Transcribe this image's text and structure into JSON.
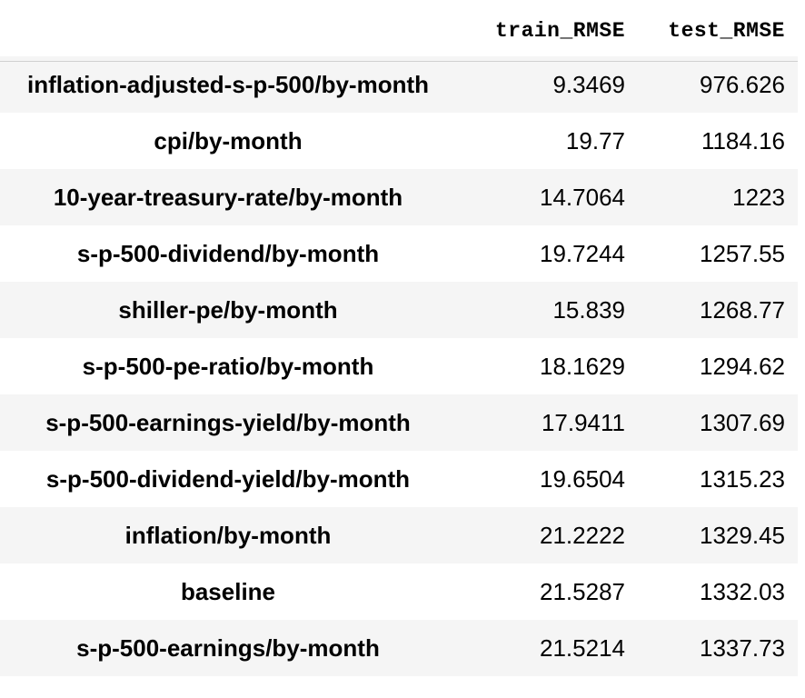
{
  "table": {
    "columns": [
      "train_RMSE",
      "test_RMSE"
    ],
    "rows": [
      {
        "label": "inflation-adjusted-s-p-500/by-month",
        "train_RMSE": "9.3469",
        "test_RMSE": "976.626"
      },
      {
        "label": "cpi/by-month",
        "train_RMSE": "19.77",
        "test_RMSE": "1184.16"
      },
      {
        "label": "10-year-treasury-rate/by-month",
        "train_RMSE": "14.7064",
        "test_RMSE": "1223"
      },
      {
        "label": "s-p-500-dividend/by-month",
        "train_RMSE": "19.7244",
        "test_RMSE": "1257.55"
      },
      {
        "label": "shiller-pe/by-month",
        "train_RMSE": "15.839",
        "test_RMSE": "1268.77"
      },
      {
        "label": "s-p-500-pe-ratio/by-month",
        "train_RMSE": "18.1629",
        "test_RMSE": "1294.62"
      },
      {
        "label": "s-p-500-earnings-yield/by-month",
        "train_RMSE": "17.9411",
        "test_RMSE": "1307.69"
      },
      {
        "label": "s-p-500-dividend-yield/by-month",
        "train_RMSE": "19.6504",
        "test_RMSE": "1315.23"
      },
      {
        "label": "inflation/by-month",
        "train_RMSE": "21.2222",
        "test_RMSE": "1329.45"
      },
      {
        "label": "baseline",
        "train_RMSE": "21.5287",
        "test_RMSE": "1332.03"
      },
      {
        "label": "s-p-500-earnings/by-month",
        "train_RMSE": "21.5214",
        "test_RMSE": "1337.73"
      }
    ]
  }
}
